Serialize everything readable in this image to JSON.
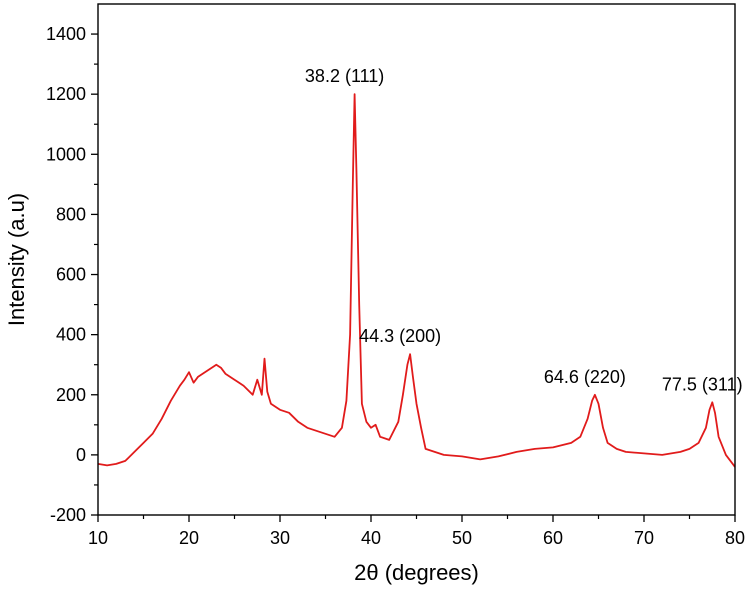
{
  "chart_data": {
    "type": "line",
    "title": "",
    "xlabel": "2θ (degrees)",
    "ylabel": "Intensity (a.u)",
    "xlim": [
      10,
      80
    ],
    "ylim": [
      -200,
      1500
    ],
    "x_ticks": [
      10,
      20,
      30,
      40,
      50,
      60,
      70,
      80
    ],
    "y_ticks": [
      -200,
      0,
      200,
      400,
      600,
      800,
      1000,
      1200,
      1400
    ],
    "x_tick_labels": [
      "10",
      "20",
      "30",
      "40",
      "50",
      "60",
      "70",
      "80"
    ],
    "y_tick_labels": [
      "-200",
      "0",
      "200",
      "400",
      "600",
      "800",
      "1000",
      "1200",
      "1400"
    ],
    "grid": false,
    "legend": "none",
    "series": [
      {
        "color": "#e11b1b",
        "x": [
          10,
          11,
          12,
          13,
          14,
          15,
          16,
          17,
          18,
          19,
          19.5,
          20,
          20.5,
          21,
          22,
          23,
          23.5,
          24,
          25,
          26,
          27,
          27.5,
          28,
          28.3,
          28.6,
          29,
          30,
          31,
          32,
          33,
          34,
          35,
          36,
          36.8,
          37.3,
          37.7,
          38.0,
          38.2,
          38.4,
          38.7,
          39.0,
          39.5,
          40,
          40.5,
          41,
          42,
          43,
          43.5,
          44.0,
          44.3,
          44.6,
          45,
          45.5,
          46,
          47,
          48,
          50,
          52,
          54,
          56,
          58,
          60,
          62,
          63,
          63.8,
          64.3,
          64.6,
          65,
          65.5,
          66,
          67,
          68,
          70,
          72,
          74,
          75,
          76,
          76.8,
          77.2,
          77.5,
          77.8,
          78.2,
          79,
          80
        ],
        "y": [
          -30,
          -35,
          -30,
          -20,
          10,
          40,
          70,
          120,
          180,
          230,
          250,
          275,
          240,
          260,
          280,
          300,
          290,
          270,
          250,
          230,
          200,
          250,
          200,
          320,
          210,
          170,
          150,
          140,
          110,
          90,
          80,
          70,
          60,
          90,
          180,
          400,
          900,
          1200,
          950,
          500,
          170,
          110,
          90,
          100,
          60,
          50,
          110,
          200,
          300,
          335,
          260,
          170,
          90,
          20,
          10,
          0,
          -5,
          -15,
          -5,
          10,
          20,
          25,
          40,
          60,
          120,
          180,
          200,
          170,
          90,
          40,
          20,
          10,
          5,
          0,
          10,
          20,
          40,
          90,
          150,
          175,
          140,
          60,
          0,
          -40
        ]
      }
    ],
    "annotations": [
      {
        "text": "38.2 (111)",
        "x": 38.2,
        "y": 1200
      },
      {
        "text": "44.3 (200)",
        "x": 44.3,
        "y": 335
      },
      {
        "text": "64.6 (220)",
        "x": 64.6,
        "y": 200
      },
      {
        "text": "77.5 (311)",
        "x": 77.5,
        "y": 175
      }
    ]
  }
}
